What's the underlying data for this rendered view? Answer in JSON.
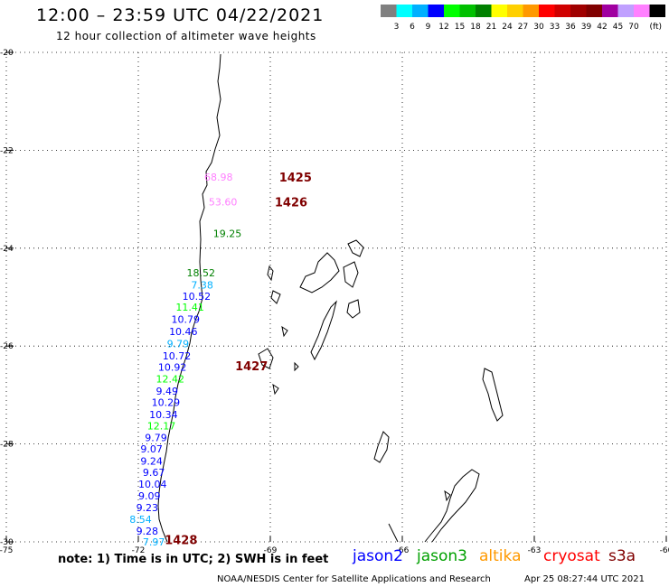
{
  "header": {
    "title": "12:00 – 23:59 UTC 04/22/2021",
    "subtitle": "12 hour collection of altimeter wave heights"
  },
  "legend": {
    "unit": "(ft)",
    "bins": [
      {
        "label": "",
        "color": "#808080"
      },
      {
        "label": "3",
        "color": "#00ffff"
      },
      {
        "label": "6",
        "color": "#00b0ff"
      },
      {
        "label": "9",
        "color": "#0000ff"
      },
      {
        "label": "12",
        "color": "#00ff00"
      },
      {
        "label": "15",
        "color": "#00c000"
      },
      {
        "label": "18",
        "color": "#008000"
      },
      {
        "label": "21",
        "color": "#ffff00"
      },
      {
        "label": "24",
        "color": "#ffd000"
      },
      {
        "label": "27",
        "color": "#ff9900"
      },
      {
        "label": "30",
        "color": "#ff0000"
      },
      {
        "label": "33",
        "color": "#d00000"
      },
      {
        "label": "36",
        "color": "#a00000"
      },
      {
        "label": "39",
        "color": "#800000"
      },
      {
        "label": "42",
        "color": "#a000a0"
      },
      {
        "label": "45",
        "color": "#c0a0ff"
      },
      {
        "label": "70",
        "color": "#ff80ff"
      },
      {
        "label": "",
        "color": "#000000"
      }
    ]
  },
  "map_data": {
    "lat_range": [
      -30,
      -20
    ],
    "lon_range": [
      -75,
      -60
    ],
    "lat_ticks": [
      -20,
      -22,
      -24,
      -26,
      -28,
      -30
    ],
    "lon_ticks": [
      -75,
      -72,
      -69,
      -66,
      -63,
      -60
    ],
    "time_labels": [
      {
        "text": "1425",
        "lat": -22.55,
        "lon": -68.8
      },
      {
        "text": "1426",
        "lat": -23.05,
        "lon": -68.9
      },
      {
        "text": "1427",
        "lat": -26.4,
        "lon": -69.8
      },
      {
        "text": "1428",
        "lat": -29.95,
        "lon": -71.4
      }
    ],
    "swh_points": [
      {
        "v": "68.98",
        "lat": -22.55,
        "lon": -70.5,
        "color": "#ff80ff"
      },
      {
        "v": "53.60",
        "lat": -23.05,
        "lon": -70.4,
        "color": "#ff80ff"
      },
      {
        "v": "19.25",
        "lat": -23.7,
        "lon": -70.3,
        "color": "#008000"
      },
      {
        "v": "18.52",
        "lat": -24.5,
        "lon": -70.9,
        "color": "#008000"
      },
      {
        "v": "7.38",
        "lat": -24.75,
        "lon": -70.8,
        "color": "#00b0ff"
      },
      {
        "v": "10.52",
        "lat": -24.98,
        "lon": -71.0,
        "color": "#0000ff"
      },
      {
        "v": "11.41",
        "lat": -25.2,
        "lon": -71.15,
        "color": "#00ff00"
      },
      {
        "v": "10.79",
        "lat": -25.45,
        "lon": -71.25,
        "color": "#0000ff"
      },
      {
        "v": "10.46",
        "lat": -25.7,
        "lon": -71.3,
        "color": "#0000ff"
      },
      {
        "v": "9.79",
        "lat": -25.95,
        "lon": -71.35,
        "color": "#00b0ff"
      },
      {
        "v": "10.72",
        "lat": -26.2,
        "lon": -71.45,
        "color": "#0000ff"
      },
      {
        "v": "10.92",
        "lat": -26.43,
        "lon": -71.55,
        "color": "#0000ff"
      },
      {
        "v": "12.42",
        "lat": -26.67,
        "lon": -71.6,
        "color": "#00ff00"
      },
      {
        "v": "9.49",
        "lat": -26.92,
        "lon": -71.6,
        "color": "#0000ff"
      },
      {
        "v": "10.29",
        "lat": -27.15,
        "lon": -71.7,
        "color": "#0000ff"
      },
      {
        "v": "10.34",
        "lat": -27.4,
        "lon": -71.75,
        "color": "#0000ff"
      },
      {
        "v": "12.17",
        "lat": -27.63,
        "lon": -71.8,
        "color": "#00ff00"
      },
      {
        "v": "9.79",
        "lat": -27.87,
        "lon": -71.85,
        "color": "#0000ff"
      },
      {
        "v": "9.07",
        "lat": -28.1,
        "lon": -71.95,
        "color": "#0000ff"
      },
      {
        "v": "9.24",
        "lat": -28.35,
        "lon": -71.95,
        "color": "#0000ff"
      },
      {
        "v": "9.67",
        "lat": -28.58,
        "lon": -71.9,
        "color": "#0000ff"
      },
      {
        "v": "10.04",
        "lat": -28.82,
        "lon": -72.0,
        "color": "#0000ff"
      },
      {
        "v": "9.09",
        "lat": -29.06,
        "lon": -72.0,
        "color": "#0000ff"
      },
      {
        "v": "9.23",
        "lat": -29.3,
        "lon": -72.05,
        "color": "#0000ff"
      },
      {
        "v": "8.54",
        "lat": -29.54,
        "lon": -72.2,
        "color": "#00b0ff"
      },
      {
        "v": "9.28",
        "lat": -29.78,
        "lon": -72.05,
        "color": "#0000ff"
      },
      {
        "v": "7.97",
        "lat": -30.0,
        "lon": -71.9,
        "color": "#00b0ff"
      }
    ]
  },
  "footer": {
    "note": "note: 1) Time is in UTC; 2) SWH is in feet",
    "satellites": [
      {
        "name": "jason2",
        "color": "#0000ff"
      },
      {
        "name": "jason3",
        "color": "#00a000"
      },
      {
        "name": "altika",
        "color": "#ff9900"
      },
      {
        "name": "cryosat",
        "color": "#ff0000"
      },
      {
        "name": "s3a",
        "color": "#800000"
      }
    ],
    "credit": "NOAA/NESDIS Center for Satellite Applications and Research",
    "timestamp": "Apr 25 08:27:44 UTC 2021"
  }
}
